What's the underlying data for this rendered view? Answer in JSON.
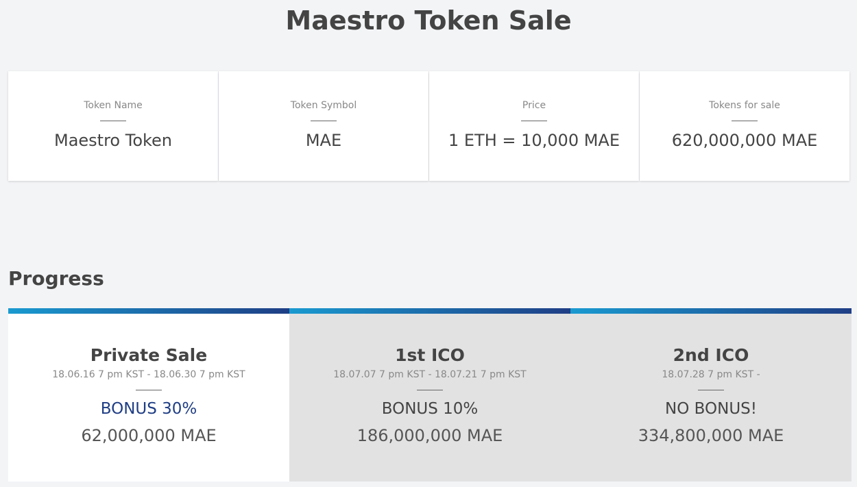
{
  "header": {
    "title": "Maestro Token Sale"
  },
  "info": [
    {
      "label": "Token Name",
      "value": "Maestro Token"
    },
    {
      "label": "Token Symbol",
      "value": "MAE"
    },
    {
      "label": "Price",
      "value": "1 ETH = 10,000 MAE"
    },
    {
      "label": "Tokens for sale",
      "value": "620,000,000 MAE"
    }
  ],
  "progress": {
    "title": "Progress",
    "stages": [
      {
        "name": "Private Sale",
        "dates": "18.06.16 7 pm KST - 18.06.30 7 pm KST",
        "bonus": "BONUS 30%",
        "amount": "62,000,000 MAE"
      },
      {
        "name": "1st ICO",
        "dates": "18.07.07 7 pm KST - 18.07.21 7 pm KST",
        "bonus": "BONUS 10%",
        "amount": "186,000,000 MAE"
      },
      {
        "name": "2nd ICO",
        "dates": "18.07.28 7 pm KST -",
        "bonus": "NO BONUS!",
        "amount": "334,800,000 MAE"
      }
    ]
  }
}
